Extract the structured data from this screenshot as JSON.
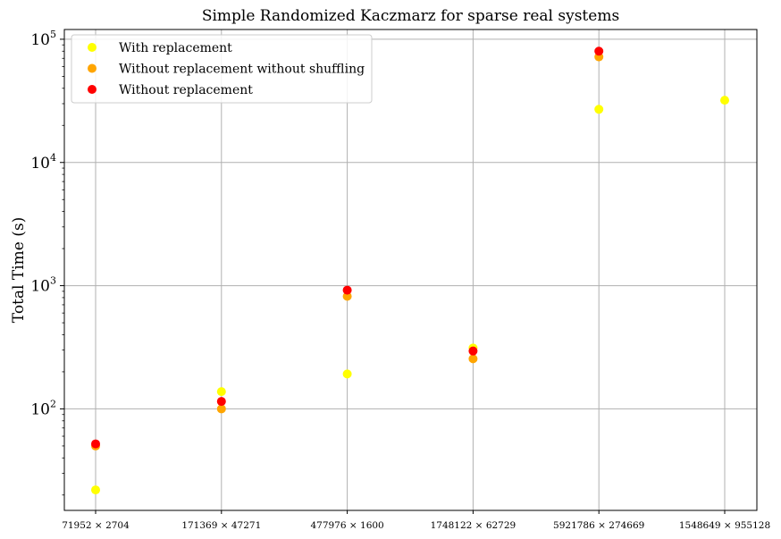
{
  "chart_data": {
    "type": "scatter",
    "title": "Simple Randomized Kaczmarz for sparse real systems",
    "xlabel": "",
    "ylabel": "Total Time (s)",
    "yscale": "log",
    "ylim": [
      15,
      120000
    ],
    "grid": true,
    "legend_position": "top-left",
    "categories": [
      "71952 × 2704",
      "171369 × 47271",
      "477976 × 1600",
      "1748122 × 62729",
      "5921786 × 274669",
      "1548649 × 955128"
    ],
    "y_ticks": [
      {
        "base": "10",
        "exp": "2",
        "value": 100
      },
      {
        "base": "10",
        "exp": "3",
        "value": 1000
      },
      {
        "base": "10",
        "exp": "4",
        "value": 10000
      },
      {
        "base": "10",
        "exp": "5",
        "value": 100000
      }
    ],
    "series": [
      {
        "name": "With replacement",
        "color": "#ffff00",
        "values": [
          22,
          138,
          192,
          312,
          27000,
          32000
        ]
      },
      {
        "name": "Without replacement without shuffling",
        "color": "#ffa500",
        "values": [
          50,
          100,
          820,
          255,
          72000,
          null
        ]
      },
      {
        "name": "Without replacement",
        "color": "#ff0000",
        "values": [
          52,
          115,
          920,
          295,
          80000,
          null
        ]
      }
    ]
  }
}
